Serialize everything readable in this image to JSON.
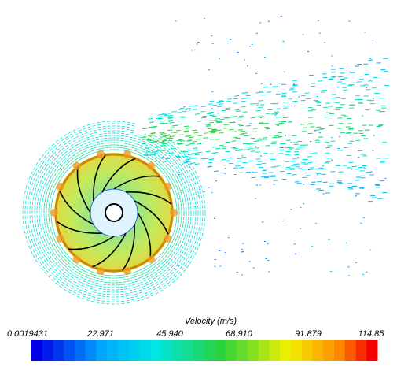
{
  "colorbar": {
    "title": "Velocity (m/s)",
    "ticks": [
      "0.0019431",
      "22.971",
      "45.940",
      "68.910",
      "91.879",
      "114.85"
    ]
  }
}
